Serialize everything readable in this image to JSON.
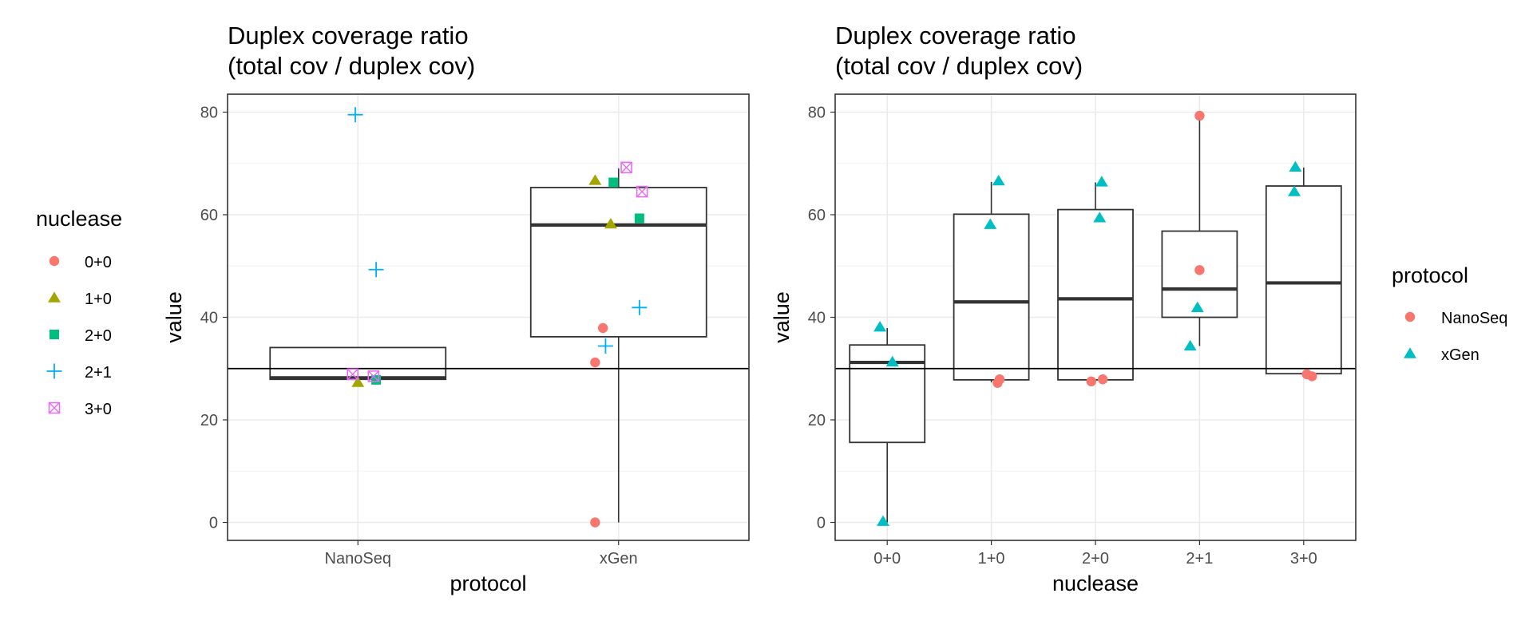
{
  "chart_data": [
    {
      "type": "boxplot",
      "title_lines": [
        "Duplex coverage ratio",
        "(total cov / duplex cov)"
      ],
      "xlabel": "protocol",
      "ylabel": "value",
      "ylim": [
        -3.5,
        83.5
      ],
      "yticks": [
        0,
        20,
        40,
        60,
        80
      ],
      "categories": [
        "NanoSeq",
        "xGen"
      ],
      "hline": 30,
      "boxes": [
        {
          "category": "NanoSeq",
          "q1": 27.9,
          "median": 28.2,
          "q3": 34.1,
          "whisker_low": 27.9,
          "whisker_high": 34.1
        },
        {
          "category": "xGen",
          "q1": 36.2,
          "median": 58.0,
          "q3": 65.3,
          "whisker_low": 0,
          "whisker_high": 69.0
        }
      ],
      "color_by": "nuclease",
      "points": [
        {
          "category": "NanoSeq",
          "group": "2+1",
          "x_jitter": -0.01,
          "y": 79.5
        },
        {
          "category": "NanoSeq",
          "group": "2+1",
          "x_jitter": 0.07,
          "y": 49.3
        },
        {
          "category": "NanoSeq",
          "group": "1+0",
          "x_jitter": 0.0,
          "y": 27.3
        },
        {
          "category": "NanoSeq",
          "group": "2+0",
          "x_jitter": 0.07,
          "y": 27.8
        },
        {
          "category": "NanoSeq",
          "group": "3+0",
          "x_jitter": -0.02,
          "y": 28.9
        },
        {
          "category": "NanoSeq",
          "group": "3+0",
          "x_jitter": 0.06,
          "y": 28.5
        },
        {
          "category": "xGen",
          "group": "0+0",
          "x_jitter": -0.09,
          "y": 0.0
        },
        {
          "category": "xGen",
          "group": "0+0",
          "x_jitter": -0.09,
          "y": 31.2
        },
        {
          "category": "xGen",
          "group": "0+0",
          "x_jitter": -0.06,
          "y": 37.9
        },
        {
          "category": "xGen",
          "group": "1+0",
          "x_jitter": -0.09,
          "y": 66.7
        },
        {
          "category": "xGen",
          "group": "1+0",
          "x_jitter": -0.03,
          "y": 58.2
        },
        {
          "category": "xGen",
          "group": "2+0",
          "x_jitter": -0.02,
          "y": 66.3
        },
        {
          "category": "xGen",
          "group": "2+0",
          "x_jitter": 0.08,
          "y": 59.3
        },
        {
          "category": "xGen",
          "group": "2+1",
          "x_jitter": 0.08,
          "y": 41.9
        },
        {
          "category": "xGen",
          "group": "2+1",
          "x_jitter": -0.05,
          "y": 34.4
        },
        {
          "category": "xGen",
          "group": "3+0",
          "x_jitter": 0.03,
          "y": 69.2
        },
        {
          "category": "xGen",
          "group": "3+0",
          "x_jitter": 0.09,
          "y": 64.5
        }
      ],
      "legend": {
        "title": "nuclease",
        "placement": "left",
        "items": [
          {
            "label": "0+0",
            "shape": "circle",
            "color": "#F8766D"
          },
          {
            "label": "1+0",
            "shape": "triangle",
            "color": "#A3A500"
          },
          {
            "label": "2+0",
            "shape": "square",
            "color": "#00BF7D"
          },
          {
            "label": "2+1",
            "shape": "plus",
            "color": "#00B0F6"
          },
          {
            "label": "3+0",
            "shape": "boxcross",
            "color": "#E76BF3"
          }
        ]
      }
    },
    {
      "type": "boxplot",
      "title_lines": [
        "Duplex coverage ratio",
        "(total cov / duplex cov)"
      ],
      "xlabel": "nuclease",
      "ylabel": "value",
      "ylim": [
        -3.5,
        83.5
      ],
      "yticks": [
        0,
        20,
        40,
        60,
        80
      ],
      "categories": [
        "0+0",
        "1+0",
        "2+0",
        "2+1",
        "3+0"
      ],
      "hline": 30,
      "boxes": [
        {
          "category": "0+0",
          "q1": 15.6,
          "median": 31.2,
          "q3": 34.6,
          "whisker_low": 0,
          "whisker_high": 37.9
        },
        {
          "category": "1+0",
          "q1": 27.8,
          "median": 43.0,
          "q3": 60.1,
          "whisker_low": 27.3,
          "whisker_high": 66.4
        },
        {
          "category": "2+0",
          "q1": 27.8,
          "median": 43.6,
          "q3": 61.0,
          "whisker_low": 27.5,
          "whisker_high": 66.3
        },
        {
          "category": "2+1",
          "q1": 40.0,
          "median": 45.5,
          "q3": 56.8,
          "whisker_low": 34.4,
          "whisker_high": 79.3
        },
        {
          "category": "3+0",
          "q1": 29.0,
          "median": 46.7,
          "q3": 65.6,
          "whisker_low": 28.5,
          "whisker_high": 69.2
        }
      ],
      "color_by": "protocol",
      "points": [
        {
          "category": "0+0",
          "group": "xGen",
          "x_jitter": -0.07,
          "y": 38.1
        },
        {
          "category": "0+0",
          "group": "xGen",
          "x_jitter": 0.05,
          "y": 31.3
        },
        {
          "category": "0+0",
          "group": "xGen",
          "x_jitter": -0.04,
          "y": 0.2
        },
        {
          "category": "1+0",
          "group": "xGen",
          "x_jitter": 0.07,
          "y": 66.6
        },
        {
          "category": "1+0",
          "group": "xGen",
          "x_jitter": -0.01,
          "y": 58.1
        },
        {
          "category": "1+0",
          "group": "NanoSeq",
          "x_jitter": 0.08,
          "y": 27.9
        },
        {
          "category": "1+0",
          "group": "NanoSeq",
          "x_jitter": 0.06,
          "y": 27.2
        },
        {
          "category": "2+0",
          "group": "xGen",
          "x_jitter": 0.06,
          "y": 66.4
        },
        {
          "category": "2+0",
          "group": "xGen",
          "x_jitter": 0.04,
          "y": 59.4
        },
        {
          "category": "2+0",
          "group": "NanoSeq",
          "x_jitter": -0.04,
          "y": 27.5
        },
        {
          "category": "2+0",
          "group": "NanoSeq",
          "x_jitter": 0.07,
          "y": 27.9
        },
        {
          "category": "2+1",
          "group": "NanoSeq",
          "x_jitter": 0.0,
          "y": 79.3
        },
        {
          "category": "2+1",
          "group": "NanoSeq",
          "x_jitter": 0.0,
          "y": 49.2
        },
        {
          "category": "2+1",
          "group": "xGen",
          "x_jitter": -0.02,
          "y": 41.9
        },
        {
          "category": "2+1",
          "group": "xGen",
          "x_jitter": -0.09,
          "y": 34.4
        },
        {
          "category": "3+0",
          "group": "xGen",
          "x_jitter": -0.08,
          "y": 69.3
        },
        {
          "category": "3+0",
          "group": "xGen",
          "x_jitter": -0.09,
          "y": 64.5
        },
        {
          "category": "3+0",
          "group": "NanoSeq",
          "x_jitter": 0.03,
          "y": 28.9
        },
        {
          "category": "3+0",
          "group": "NanoSeq",
          "x_jitter": 0.08,
          "y": 28.5
        }
      ],
      "legend": {
        "title": "protocol",
        "placement": "right",
        "items": [
          {
            "label": "NanoSeq",
            "shape": "circle",
            "color": "#F8766D"
          },
          {
            "label": "xGen",
            "shape": "triangle",
            "color": "#00BFC4"
          }
        ]
      }
    }
  ]
}
